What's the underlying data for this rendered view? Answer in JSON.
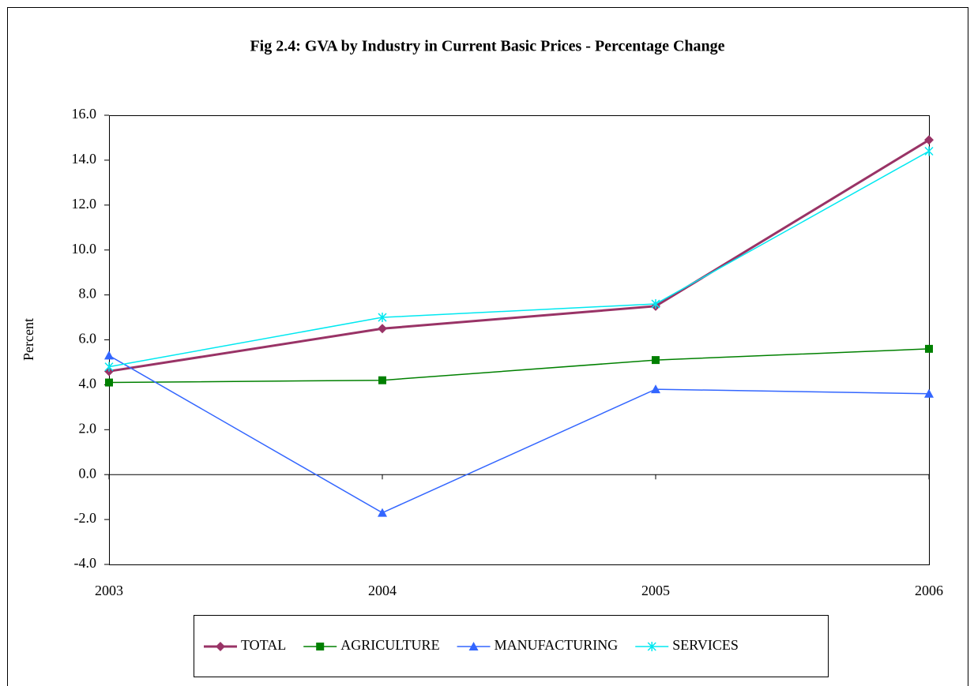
{
  "chart_data": {
    "type": "line",
    "title": "Fig 2.4:  GVA by Industry in Current Basic Prices - Percentage Change",
    "ylabel": "Percent",
    "categories": [
      "2003",
      "2004",
      "2005",
      "2006"
    ],
    "series": [
      {
        "name": "TOTAL",
        "color": "#993366",
        "marker": "diamond",
        "values": [
          4.6,
          6.5,
          7.5,
          14.9
        ]
      },
      {
        "name": "AGRICULTURE",
        "color": "#008000",
        "marker": "square",
        "values": [
          4.1,
          4.2,
          5.1,
          5.6
        ]
      },
      {
        "name": "MANUFACTURING",
        "color": "#3366ff",
        "marker": "triangle",
        "values": [
          5.3,
          -1.7,
          3.8,
          3.6
        ]
      },
      {
        "name": "SERVICES",
        "color": "#00e8f0",
        "marker": "asterisk",
        "values": [
          4.8,
          7.0,
          7.6,
          14.4
        ]
      }
    ],
    "ylim": [
      -4,
      16
    ],
    "yticks": [
      {
        "value": -4,
        "label": "-4.0"
      },
      {
        "value": -2,
        "label": "-2.0"
      },
      {
        "value": 0,
        "label": "0.0"
      },
      {
        "value": 2,
        "label": "2.0"
      },
      {
        "value": 4,
        "label": "4.0"
      },
      {
        "value": 6,
        "label": "6.0"
      },
      {
        "value": 8,
        "label": "8.0"
      },
      {
        "value": 10,
        "label": "10.0"
      },
      {
        "value": 12,
        "label": "12.0"
      },
      {
        "value": 14,
        "label": "14.0"
      },
      {
        "value": 16,
        "label": "16.0"
      }
    ],
    "grid": false,
    "legend": "bottom"
  }
}
